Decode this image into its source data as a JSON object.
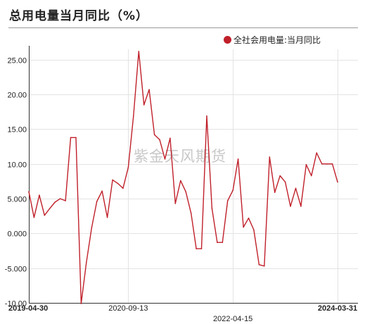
{
  "title": "总用电量当月同比（%）",
  "watermark": "紫金天风期货",
  "chart_data": {
    "type": "line",
    "series": [
      {
        "name": "全社会用电量:当月同比",
        "color": "#c0202a",
        "values": [
          6.0,
          2.3,
          5.5,
          2.6,
          3.6,
          4.5,
          5.0,
          4.7,
          13.8,
          13.8,
          -10.1,
          -4.2,
          0.8,
          4.6,
          6.1,
          2.3,
          7.7,
          7.2,
          6.5,
          9.5,
          16.9,
          26.2,
          18.5,
          20.7,
          14.2,
          13.5,
          10.7,
          13.7,
          4.3,
          7.6,
          6.0,
          2.9,
          -2.2,
          -2.2,
          16.9,
          3.6,
          -1.3,
          -1.3,
          4.7,
          6.2,
          10.7,
          0.9,
          2.2,
          0.5,
          -4.5,
          -4.7,
          11.0,
          5.9,
          8.3,
          7.4,
          3.9,
          6.5,
          3.9,
          9.9,
          8.3,
          11.6,
          10.0,
          10.0,
          10.0,
          7.4
        ]
      }
    ],
    "x_ticks": [
      "2019-04-30",
      "2020-09-13",
      "2022-04-15",
      "2024-03-31"
    ],
    "x_tick_bold": [
      true,
      false,
      false,
      true
    ],
    "x_tick_index": [
      0,
      19,
      39,
      59
    ],
    "y_ticks": [
      "25.00",
      "20.00",
      "15.00",
      "10.00",
      "5.000",
      "0.000",
      "-5.000",
      "-10.00"
    ],
    "ylim": [
      -10,
      26.5
    ],
    "grid": true,
    "legend_position": "top-right"
  }
}
